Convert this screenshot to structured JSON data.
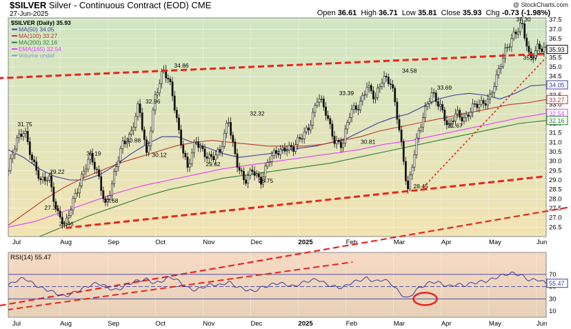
{
  "header": {
    "ticker": "$SILVER",
    "description": "Silver - Continuous Contract (EOD)",
    "exchange": "CME",
    "date": "27-Jun-2025",
    "watermark": "@ StockCharts.com",
    "ohlc": [
      {
        "label": "Open",
        "value": "36.61"
      },
      {
        "label": "High",
        "value": "36.71"
      },
      {
        "label": "Low",
        "value": "35.81"
      },
      {
        "label": "Close",
        "value": "35.93"
      },
      {
        "label": "Chg",
        "value": "-0.73 (-1.98%)"
      }
    ]
  },
  "chart_data": [
    {
      "type": "candlestick",
      "title": "$SILVER (Daily) 35.93",
      "background": [
        "#cfe6c4",
        "#f2e3b3"
      ],
      "ylim": [
        26.0,
        37.6
      ],
      "yticks": [
        26.5,
        27.0,
        27.5,
        28.0,
        28.5,
        29.0,
        29.5,
        30.0,
        30.5,
        31.0,
        31.5,
        32.0,
        32.5,
        33.0,
        33.5,
        34.0,
        34.5,
        35.0,
        35.5,
        36.0,
        36.5,
        37.0,
        37.5
      ],
      "xlabels": [
        "Jul",
        "Aug",
        "Sep",
        "Oct",
        "Nov",
        "Dec",
        "2025",
        "Feb",
        "Mar",
        "Apr",
        "May",
        "Jun"
      ],
      "legend": [
        {
          "label": "$SILVER (Daily) 35.93",
          "color": "#000000"
        },
        {
          "label": "MA(50) 34.05",
          "color": "#3a3aa0"
        },
        {
          "label": "MA(100) 33.27",
          "color": "#c0392b"
        },
        {
          "label": "MA(200) 32.16",
          "color": "#2e7d32"
        },
        {
          "label": "EMA(165) 32.54",
          "color": "#e040fb"
        },
        {
          "label": "Volume undef",
          "color": "#8899cc"
        }
      ],
      "price_tags": [
        {
          "value": 35.93,
          "label": "35.93",
          "color": "#000000"
        },
        {
          "value": 34.05,
          "label": "34.05",
          "color": "#3a3aa0"
        },
        {
          "value": 33.27,
          "label": "33.27",
          "color": "#c0392b"
        },
        {
          "value": 32.54,
          "label": "32.54",
          "color": "#e040fb"
        },
        {
          "value": 32.16,
          "label": "32.16",
          "color": "#2e7d32"
        }
      ],
      "annotations": [
        {
          "label": "31.75",
          "value": 31.75,
          "t": 0.03
        },
        {
          "label": "29.22",
          "value": 29.22,
          "t": 0.09
        },
        {
          "label": "27.31",
          "value": 27.31,
          "t": 0.08
        },
        {
          "label": "26.46",
          "value": 26.46,
          "t": 0.107
        },
        {
          "label": "30.19",
          "value": 30.19,
          "t": 0.158
        },
        {
          "label": "27.68",
          "value": 27.68,
          "t": 0.19
        },
        {
          "label": "30.88",
          "value": 30.88,
          "t": 0.232
        },
        {
          "label": "32.96",
          "value": 32.96,
          "t": 0.268
        },
        {
          "label": "30.12",
          "value": 30.12,
          "t": 0.28
        },
        {
          "label": "34.86",
          "value": 34.86,
          "t": 0.321
        },
        {
          "label": "29.62",
          "value": 29.62,
          "t": 0.38
        },
        {
          "label": "32.32",
          "value": 32.32,
          "t": 0.462
        },
        {
          "label": "28.75",
          "value": 28.75,
          "t": 0.478
        },
        {
          "label": "33.39",
          "value": 33.39,
          "t": 0.628
        },
        {
          "label": "30.81",
          "value": 30.81,
          "t": 0.668
        },
        {
          "label": "34.58",
          "value": 34.58,
          "t": 0.745
        },
        {
          "label": "28.45",
          "value": 28.45,
          "t": 0.766
        },
        {
          "label": "33.69",
          "value": 33.69,
          "t": 0.81
        },
        {
          "label": "31.67",
          "value": 31.67,
          "t": 0.83
        },
        {
          "label": "37.30",
          "value": 37.3,
          "t": 0.957
        },
        {
          "label": "35.27",
          "value": 35.27,
          "t": 0.97
        }
      ],
      "trendlines": [
        {
          "from": [
            -0.02,
            34.4
          ],
          "to": [
            1.0,
            35.7
          ],
          "style": "dashed",
          "color": "#e8231b"
        },
        {
          "from": [
            0.107,
            26.46
          ],
          "to": [
            1.0,
            29.2
          ],
          "style": "dashed",
          "color": "#e8231b"
        },
        {
          "from": [
            0.766,
            28.45
          ],
          "to": [
            1.0,
            35.5
          ],
          "style": "dotted",
          "color": "#e8231b"
        }
      ],
      "series": [
        {
          "name": "$SILVER (Daily) 35.93",
          "kind": "close",
          "color": "#000000",
          "values": [
            29.5,
            31.0,
            31.75,
            30.0,
            28.8,
            29.22,
            27.31,
            26.46,
            28.0,
            29.2,
            30.19,
            29.3,
            27.68,
            29.2,
            30.88,
            31.5,
            32.96,
            30.12,
            33.5,
            34.86,
            33.8,
            31.5,
            29.62,
            31.0,
            30.5,
            30.2,
            30.4,
            32.32,
            30.0,
            28.75,
            29.6,
            29.0,
            30.0,
            30.5,
            30.8,
            30.6,
            31.3,
            32.0,
            33.39,
            32.5,
            31.2,
            30.81,
            32.6,
            33.0,
            34.0,
            33.2,
            34.58,
            34.2,
            31.5,
            28.45,
            31.0,
            32.4,
            33.69,
            33.0,
            31.67,
            32.6,
            32.3,
            32.8,
            33.0,
            33.4,
            34.5,
            35.8,
            36.8,
            37.3,
            35.27,
            36.2,
            35.93
          ]
        },
        {
          "name": "MA(50) 34.05",
          "kind": "line",
          "color": "#3a3aa0",
          "values": [
            30.6,
            30.2,
            29.6,
            29.2,
            29.0,
            29.0,
            29.3,
            29.8,
            30.4,
            30.9,
            31.3,
            31.3,
            31.0,
            30.7,
            30.4,
            30.2,
            30.3,
            30.4,
            30.6,
            30.7,
            30.8,
            31.0,
            31.2,
            31.6,
            32.0,
            32.3,
            32.5,
            32.9,
            33.3,
            33.5,
            33.6,
            33.5,
            33.3,
            33.6,
            34.0,
            34.05
          ]
        },
        {
          "name": "MA(100) 33.27",
          "kind": "line",
          "color": "#c0392b",
          "values": [
            26.6,
            27.3,
            28.0,
            28.6,
            29.1,
            29.5,
            29.9,
            30.2,
            30.5,
            30.8,
            31.0,
            31.1,
            31.0,
            30.9,
            30.8,
            30.8,
            30.8,
            30.9,
            31.1,
            31.3,
            31.6,
            31.8,
            32.0,
            32.2,
            32.4,
            32.6,
            32.8,
            33.0,
            33.1,
            33.27
          ]
        },
        {
          "name": "MA(200) 32.16",
          "kind": "line",
          "color": "#2e7d32",
          "values": [
            25.3,
            25.9,
            26.5,
            27.1,
            27.6,
            28.1,
            28.5,
            28.8,
            29.1,
            29.3,
            29.5,
            29.7,
            29.9,
            30.2,
            30.5,
            30.8,
            31.1,
            31.4,
            31.7,
            32.0,
            32.16
          ]
        },
        {
          "name": "EMA(165) 32.54",
          "kind": "line",
          "color": "#e040fb",
          "values": [
            26.5,
            26.8,
            27.3,
            27.8,
            28.3,
            28.7,
            29.0,
            29.3,
            29.6,
            29.8,
            30.0,
            30.2,
            30.4,
            30.6,
            30.9,
            31.1,
            31.4,
            31.7,
            32.0,
            32.3,
            32.54
          ]
        }
      ]
    },
    {
      "type": "line",
      "title": "RSI(14) 55.47",
      "background": [
        "#f7d9c4",
        "#e6d2b8"
      ],
      "ylim": [
        0,
        90
      ],
      "yticks": [
        10,
        30,
        50,
        70
      ],
      "levels": [
        30,
        50,
        70
      ],
      "xlabels": [
        "Jul",
        "Aug",
        "Sep",
        "Oct",
        "Nov",
        "Dec",
        "2025",
        "Feb",
        "Mar",
        "Apr",
        "May",
        "Jun"
      ],
      "price_tags": [
        {
          "value": 55.47,
          "label": "55.47",
          "color": "#3a3aa0"
        }
      ],
      "highlight": {
        "value": 30,
        "t": 0.775,
        "color": "#e8231b"
      },
      "trendlines": [
        {
          "from": [
            -0.02,
            10
          ],
          "to": [
            0.64,
            90
          ],
          "style": "dashed",
          "color": "#e8231b"
        }
      ],
      "series": [
        {
          "name": "RSI(14) 55.47",
          "color": "#3a3aa0",
          "values": [
            52,
            60,
            64,
            55,
            48,
            44,
            38,
            34,
            40,
            46,
            52,
            56,
            50,
            44,
            48,
            56,
            60,
            62,
            55,
            60,
            66,
            58,
            48,
            44,
            50,
            54,
            52,
            58,
            50,
            46,
            42,
            48,
            52,
            56,
            54,
            50,
            56,
            60,
            62,
            54,
            50,
            48,
            56,
            60,
            64,
            58,
            62,
            55,
            40,
            30,
            44,
            52,
            58,
            56,
            50,
            54,
            52,
            56,
            58,
            60,
            66,
            70,
            72,
            68,
            60,
            62,
            55
          ]
        }
      ]
    }
  ]
}
